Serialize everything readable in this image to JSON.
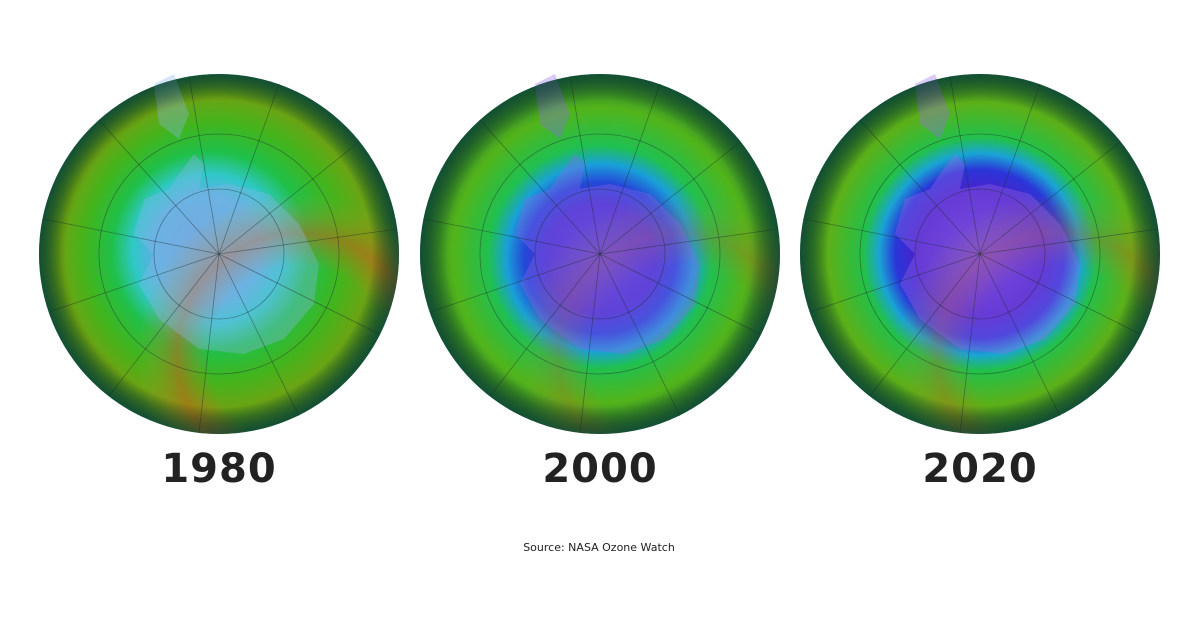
{
  "panels": [
    {
      "label": "1980"
    },
    {
      "label": "2000"
    },
    {
      "label": "2020"
    }
  ],
  "source": "Source: NASA Ozone Watch"
}
